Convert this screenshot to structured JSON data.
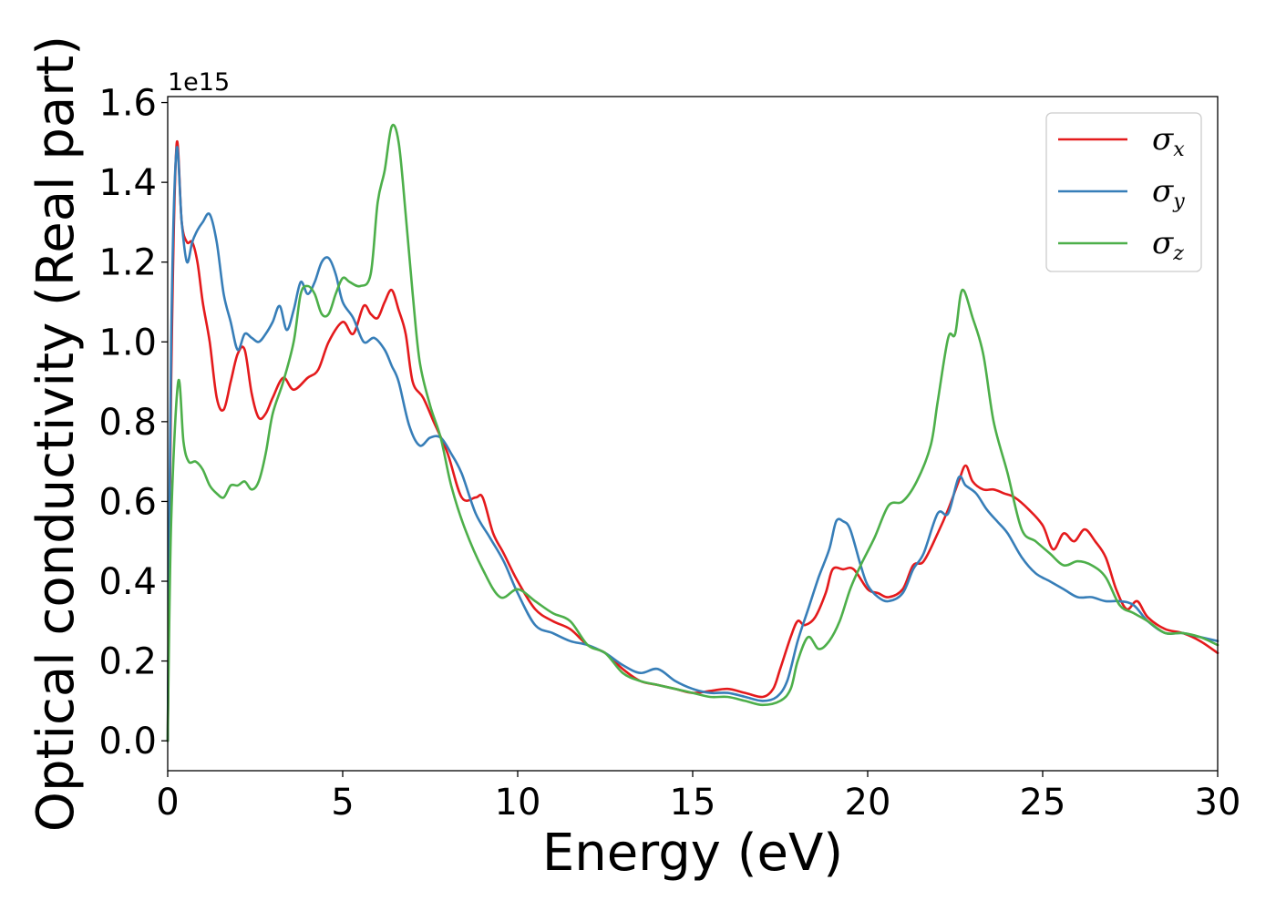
{
  "chart_data": {
    "type": "line",
    "title": "",
    "xlabel": "Energy (eV)",
    "ylabel": "Optical conductivity (Real part)",
    "y_offset_text": "1e15",
    "y_scale": 1000000000000000.0,
    "xlim": [
      0,
      30
    ],
    "ylim": [
      -0.075,
      1.615
    ],
    "xticks": [
      0,
      5,
      10,
      15,
      20,
      25,
      30
    ],
    "xtick_labels": [
      "0",
      "5",
      "10",
      "15",
      "20",
      "25",
      "30"
    ],
    "yticks": [
      0.0,
      0.2,
      0.4,
      0.6,
      0.8,
      1.0,
      1.2,
      1.4,
      1.6
    ],
    "ytick_labels": [
      "0.0",
      "0.2",
      "0.4",
      "0.6",
      "0.8",
      "1.0",
      "1.2",
      "1.4",
      "1.6"
    ],
    "grid": false,
    "legend_position": "top-right",
    "series": [
      {
        "name": "σx",
        "symbol": "σ",
        "subscript": "x",
        "color": "#e41a1c",
        "x": [
          0,
          0.1,
          0.25,
          0.4,
          0.55,
          0.7,
          0.85,
          1.0,
          1.2,
          1.4,
          1.6,
          1.8,
          2.0,
          2.2,
          2.4,
          2.6,
          2.8,
          3.0,
          3.3,
          3.6,
          4.0,
          4.3,
          4.6,
          5.0,
          5.3,
          5.6,
          5.8,
          6.0,
          6.2,
          6.4,
          6.6,
          6.8,
          7.0,
          7.3,
          7.6,
          8.0,
          8.4,
          8.8,
          9.0,
          9.3,
          9.6,
          10.0,
          10.5,
          11.0,
          11.5,
          12.0,
          12.5,
          13.0,
          13.5,
          14.0,
          14.5,
          15.0,
          15.5,
          16.0,
          16.5,
          17.0,
          17.3,
          17.5,
          17.8,
          18.0,
          18.2,
          18.5,
          18.8,
          19.0,
          19.3,
          19.6,
          20.0,
          20.3,
          20.6,
          21.0,
          21.3,
          21.6,
          22.0,
          22.3,
          22.6,
          22.8,
          23.0,
          23.3,
          23.6,
          23.9,
          24.2,
          24.6,
          25.0,
          25.3,
          25.6,
          25.9,
          26.2,
          26.5,
          26.8,
          27.1,
          27.4,
          27.7,
          28.0,
          28.5,
          29.0,
          29.5,
          30.0
        ],
        "values": [
          0,
          0.9,
          1.49,
          1.3,
          1.25,
          1.25,
          1.2,
          1.1,
          1.0,
          0.86,
          0.83,
          0.9,
          0.97,
          0.98,
          0.87,
          0.81,
          0.82,
          0.86,
          0.91,
          0.88,
          0.91,
          0.93,
          1.0,
          1.05,
          1.02,
          1.09,
          1.07,
          1.06,
          1.1,
          1.13,
          1.08,
          1.02,
          0.9,
          0.86,
          0.8,
          0.72,
          0.61,
          0.61,
          0.61,
          0.52,
          0.47,
          0.4,
          0.33,
          0.3,
          0.28,
          0.24,
          0.22,
          0.18,
          0.15,
          0.14,
          0.13,
          0.12,
          0.125,
          0.13,
          0.12,
          0.11,
          0.13,
          0.18,
          0.26,
          0.3,
          0.29,
          0.31,
          0.37,
          0.43,
          0.43,
          0.43,
          0.38,
          0.37,
          0.36,
          0.38,
          0.44,
          0.45,
          0.52,
          0.58,
          0.65,
          0.69,
          0.65,
          0.63,
          0.63,
          0.62,
          0.61,
          0.58,
          0.54,
          0.48,
          0.52,
          0.5,
          0.53,
          0.5,
          0.46,
          0.38,
          0.33,
          0.35,
          0.31,
          0.28,
          0.27,
          0.25,
          0.22
        ]
      },
      {
        "name": "σy",
        "symbol": "σ",
        "subscript": "y",
        "color": "#377eb8",
        "x": [
          0,
          0.1,
          0.25,
          0.4,
          0.55,
          0.7,
          0.85,
          1.0,
          1.2,
          1.4,
          1.6,
          1.8,
          2.0,
          2.2,
          2.4,
          2.6,
          2.8,
          3.0,
          3.2,
          3.4,
          3.6,
          3.8,
          4.0,
          4.2,
          4.4,
          4.6,
          4.8,
          5.0,
          5.3,
          5.6,
          5.9,
          6.2,
          6.4,
          6.6,
          6.9,
          7.2,
          7.5,
          7.8,
          8.1,
          8.4,
          8.8,
          9.2,
          9.6,
          10.0,
          10.5,
          11.0,
          11.5,
          12.0,
          12.5,
          13.0,
          13.5,
          14.0,
          14.5,
          15.0,
          15.5,
          16.0,
          16.5,
          17.0,
          17.4,
          17.7,
          18.0,
          18.3,
          18.6,
          18.9,
          19.1,
          19.3,
          19.5,
          19.8,
          20.0,
          20.3,
          20.6,
          21.0,
          21.3,
          21.6,
          22.0,
          22.3,
          22.6,
          22.8,
          23.1,
          23.4,
          23.7,
          24.0,
          24.4,
          24.8,
          25.2,
          25.6,
          26.0,
          26.4,
          26.8,
          27.2,
          27.6,
          28.0,
          28.5,
          29.0,
          29.5,
          30.0
        ],
        "values": [
          0,
          1.0,
          1.48,
          1.3,
          1.2,
          1.25,
          1.28,
          1.3,
          1.32,
          1.25,
          1.12,
          1.05,
          0.98,
          1.02,
          1.01,
          1.0,
          1.02,
          1.05,
          1.09,
          1.03,
          1.08,
          1.15,
          1.12,
          1.15,
          1.2,
          1.21,
          1.17,
          1.1,
          1.06,
          1.0,
          1.01,
          0.98,
          0.94,
          0.9,
          0.79,
          0.74,
          0.76,
          0.76,
          0.72,
          0.67,
          0.57,
          0.51,
          0.45,
          0.37,
          0.29,
          0.27,
          0.25,
          0.24,
          0.22,
          0.19,
          0.17,
          0.18,
          0.15,
          0.13,
          0.12,
          0.12,
          0.11,
          0.1,
          0.11,
          0.15,
          0.25,
          0.33,
          0.41,
          0.48,
          0.55,
          0.55,
          0.53,
          0.44,
          0.39,
          0.36,
          0.35,
          0.37,
          0.43,
          0.47,
          0.57,
          0.57,
          0.66,
          0.64,
          0.62,
          0.58,
          0.55,
          0.52,
          0.46,
          0.42,
          0.4,
          0.38,
          0.36,
          0.36,
          0.35,
          0.35,
          0.34,
          0.3,
          0.27,
          0.27,
          0.26,
          0.25
        ]
      },
      {
        "name": "σz",
        "symbol": "σ",
        "subscript": "z",
        "color": "#4daf4a",
        "x": [
          0,
          0.1,
          0.3,
          0.45,
          0.6,
          0.8,
          1.0,
          1.2,
          1.4,
          1.6,
          1.8,
          2.0,
          2.2,
          2.4,
          2.6,
          2.8,
          3.0,
          3.3,
          3.6,
          3.8,
          4.0,
          4.2,
          4.4,
          4.6,
          4.8,
          5.0,
          5.2,
          5.5,
          5.8,
          6.0,
          6.2,
          6.4,
          6.6,
          6.8,
          7.0,
          7.2,
          7.5,
          7.8,
          8.1,
          8.5,
          9.0,
          9.5,
          10.0,
          10.5,
          11.0,
          11.5,
          12.0,
          12.5,
          13.0,
          13.5,
          14.0,
          14.5,
          15.0,
          15.5,
          16.0,
          16.5,
          17.0,
          17.5,
          17.8,
          18.0,
          18.3,
          18.6,
          18.9,
          19.2,
          19.5,
          19.8,
          20.2,
          20.6,
          21.0,
          21.4,
          21.8,
          22.0,
          22.3,
          22.5,
          22.7,
          23.0,
          23.3,
          23.6,
          24.0,
          24.4,
          24.8,
          25.2,
          25.6,
          26.0,
          26.4,
          26.8,
          27.2,
          27.6,
          28.0,
          28.5,
          29.0,
          29.5,
          30.0
        ],
        "values": [
          0,
          0.55,
          0.9,
          0.75,
          0.7,
          0.7,
          0.68,
          0.64,
          0.62,
          0.61,
          0.64,
          0.64,
          0.65,
          0.63,
          0.65,
          0.72,
          0.82,
          0.9,
          1.0,
          1.12,
          1.14,
          1.12,
          1.07,
          1.07,
          1.12,
          1.16,
          1.15,
          1.14,
          1.17,
          1.35,
          1.43,
          1.54,
          1.5,
          1.32,
          1.12,
          0.95,
          0.84,
          0.76,
          0.64,
          0.53,
          0.43,
          0.36,
          0.38,
          0.35,
          0.32,
          0.3,
          0.24,
          0.22,
          0.17,
          0.15,
          0.14,
          0.13,
          0.12,
          0.11,
          0.11,
          0.1,
          0.09,
          0.1,
          0.13,
          0.2,
          0.26,
          0.23,
          0.25,
          0.3,
          0.38,
          0.44,
          0.51,
          0.59,
          0.6,
          0.65,
          0.74,
          0.85,
          1.01,
          1.02,
          1.13,
          1.06,
          0.97,
          0.8,
          0.67,
          0.53,
          0.5,
          0.47,
          0.44,
          0.45,
          0.44,
          0.41,
          0.34,
          0.32,
          0.3,
          0.27,
          0.27,
          0.26,
          0.24
        ]
      }
    ]
  }
}
